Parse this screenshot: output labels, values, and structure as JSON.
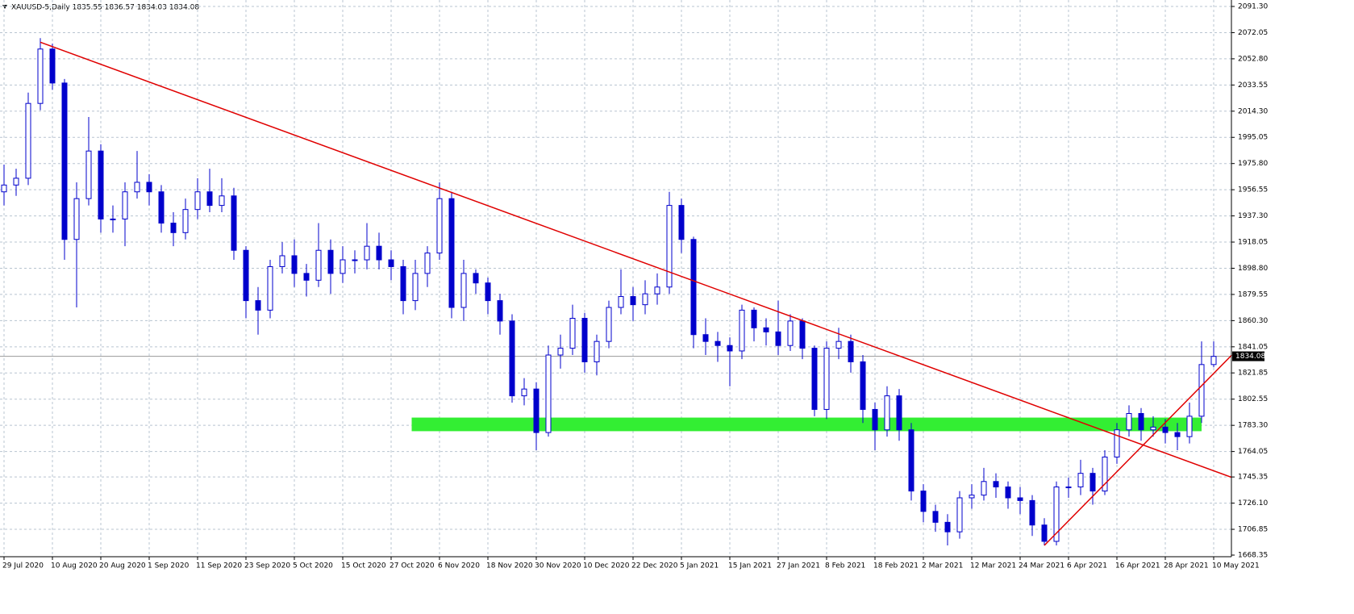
{
  "chart_data": {
    "type": "candlestick",
    "title": "XAUUSD-5,Daily  1835.55 1836.57 1834.03 1834.08",
    "last_price": 1834.08,
    "categories": [
      "29 Jul 2020",
      null,
      null,
      null,
      "10 Aug 2020",
      null,
      null,
      null,
      "20 Aug 2020",
      null,
      null,
      null,
      "1 Sep 2020",
      null,
      null,
      null,
      "11 Sep 2020",
      null,
      null,
      null,
      "23 Sep 2020",
      null,
      null,
      null,
      "5 Oct 2020",
      null,
      null,
      null,
      "15 Oct 2020",
      null,
      null,
      null,
      "27 Oct 2020",
      null,
      null,
      null,
      "6 Nov 2020",
      null,
      null,
      null,
      "18 Nov 2020",
      null,
      null,
      null,
      "30 Nov 2020",
      null,
      null,
      null,
      "10 Dec 2020",
      null,
      null,
      null,
      "22 Dec 2020",
      null,
      null,
      null,
      "5 Jan 2021",
      null,
      null,
      null,
      "15 Jan 2021",
      null,
      null,
      null,
      "27 Jan 2021",
      null,
      null,
      null,
      "8 Feb 2021",
      null,
      null,
      null,
      "18 Feb 2021",
      null,
      null,
      null,
      "2 Mar 2021",
      null,
      null,
      null,
      "12 Mar 2021",
      null,
      null,
      null,
      "24 Mar 2021",
      null,
      null,
      null,
      "6 Apr 2021",
      null,
      null,
      null,
      "16 Apr 2021",
      null,
      null,
      null,
      "28 Apr 2021",
      null,
      null,
      null,
      "10 May 2021"
    ],
    "open": [
      1955,
      1960,
      1965,
      2020,
      2060,
      2035,
      1920,
      1950,
      1985,
      1935,
      1935,
      1955,
      1962,
      1955,
      1932,
      1925,
      1942,
      1955,
      1945,
      1952,
      1912,
      1875,
      1868,
      1900,
      1908,
      1895,
      1890,
      1912,
      1895,
      1905,
      1905,
      1915,
      1905,
      1900,
      1875,
      1895,
      1910,
      1950,
      1870,
      1895,
      1888,
      1875,
      1860,
      1805,
      1810,
      1778,
      1835,
      1840,
      1862,
      1830,
      1845,
      1870,
      1878,
      1872,
      1880,
      1885,
      1945,
      1920,
      1850,
      1845,
      1842,
      1838,
      1868,
      1855,
      1852,
      1842,
      1860,
      1840,
      1795,
      1840,
      1845,
      1830,
      1795,
      1780,
      1805,
      1780,
      1735,
      1720,
      1712,
      1705,
      1730,
      1732,
      1742,
      1738,
      1730,
      1728,
      1710,
      1698,
      1738,
      1738,
      1748,
      1735,
      1760,
      1780,
      1792,
      1780,
      1782,
      1778,
      1775,
      1790,
      1828
    ],
    "high": [
      1975,
      1972,
      2028,
      2068,
      2064,
      2038,
      1962,
      2010,
      1990,
      1945,
      1962,
      1985,
      1968,
      1960,
      1940,
      1950,
      1965,
      1972,
      1965,
      1958,
      1915,
      1885,
      1905,
      1918,
      1920,
      1902,
      1932,
      1920,
      1915,
      1912,
      1932,
      1925,
      1912,
      1905,
      1905,
      1915,
      1962,
      1955,
      1905,
      1898,
      1892,
      1880,
      1865,
      1818,
      1815,
      1842,
      1850,
      1872,
      1866,
      1850,
      1875,
      1898,
      1885,
      1890,
      1895,
      1955,
      1950,
      1922,
      1862,
      1852,
      1848,
      1872,
      1870,
      1862,
      1875,
      1865,
      1862,
      1842,
      1845,
      1855,
      1850,
      1835,
      1800,
      1812,
      1810,
      1785,
      1740,
      1725,
      1718,
      1735,
      1740,
      1752,
      1748,
      1742,
      1738,
      1732,
      1715,
      1742,
      1745,
      1758,
      1752,
      1765,
      1785,
      1798,
      1796,
      1790,
      1788,
      1785,
      1800,
      1845,
      1845
    ],
    "low": [
      1945,
      1952,
      1960,
      2015,
      2030,
      1905,
      1870,
      1945,
      1925,
      1925,
      1915,
      1950,
      1945,
      1925,
      1915,
      1920,
      1935,
      1940,
      1940,
      1905,
      1862,
      1850,
      1862,
      1895,
      1885,
      1878,
      1885,
      1880,
      1888,
      1895,
      1898,
      1898,
      1890,
      1865,
      1868,
      1885,
      1905,
      1862,
      1860,
      1880,
      1865,
      1850,
      1800,
      1798,
      1765,
      1775,
      1825,
      1835,
      1822,
      1820,
      1840,
      1865,
      1860,
      1865,
      1872,
      1880,
      1910,
      1840,
      1835,
      1830,
      1812,
      1832,
      1845,
      1842,
      1835,
      1838,
      1832,
      1790,
      1788,
      1832,
      1822,
      1785,
      1765,
      1775,
      1772,
      1728,
      1712,
      1705,
      1695,
      1700,
      1722,
      1728,
      1730,
      1722,
      1718,
      1702,
      1695,
      1695,
      1730,
      1732,
      1725,
      1732,
      1755,
      1775,
      1772,
      1775,
      1770,
      1765,
      1770,
      1785,
      1826
    ],
    "close": [
      1960,
      1965,
      2020,
      2060,
      2035,
      1920,
      1950,
      1985,
      1935,
      1935,
      1955,
      1962,
      1955,
      1932,
      1925,
      1942,
      1955,
      1945,
      1952,
      1912,
      1875,
      1868,
      1900,
      1908,
      1895,
      1890,
      1912,
      1895,
      1905,
      1905,
      1915,
      1905,
      1900,
      1875,
      1895,
      1910,
      1950,
      1870,
      1895,
      1888,
      1875,
      1860,
      1805,
      1810,
      1778,
      1835,
      1840,
      1862,
      1830,
      1845,
      1870,
      1878,
      1872,
      1880,
      1885,
      1945,
      1920,
      1850,
      1845,
      1842,
      1838,
      1868,
      1855,
      1852,
      1842,
      1860,
      1840,
      1795,
      1840,
      1845,
      1830,
      1795,
      1780,
      1805,
      1780,
      1735,
      1720,
      1712,
      1705,
      1730,
      1732,
      1742,
      1738,
      1730,
      1728,
      1710,
      1698,
      1738,
      1738,
      1748,
      1735,
      1760,
      1780,
      1792,
      1780,
      1782,
      1778,
      1775,
      1790,
      1828,
      1834
    ],
    "color": "#0000cc",
    "trendlines": [
      {
        "x": [
          3,
          101.5
        ],
        "y": [
          2065,
          1745
        ],
        "color": "#e00000"
      },
      {
        "x": [
          86,
          101.5
        ],
        "y": [
          1695,
          1835
        ],
        "color": "#e00000"
      }
    ],
    "zone": {
      "x": [
        33.7,
        99
      ],
      "y": [
        1779,
        1789
      ],
      "color": "#33ee33"
    },
    "ylim": [
      1686.7,
      2091.3
    ],
    "yticks": [
      {
        "value": 2091.3,
        "label": "2091.30"
      },
      2072.05,
      {
        "value": 2052.8,
        "label": "2052.80"
      },
      2033.55,
      {
        "value": 2014.3,
        "label": "2014.30"
      },
      1995.05,
      {
        "value": 1975.8,
        "label": "1975.80"
      },
      1956.55,
      {
        "value": 1937.3,
        "label": "1937.30"
      },
      1918.05,
      {
        "value": 1898.8,
        "label": "1898.80"
      },
      1879.55,
      {
        "value": 1860.3,
        "label": "1860.30"
      },
      1841.05,
      1821.85,
      1802.55,
      {
        "value": 1783.3,
        "label": "1783.30"
      },
      1764.05,
      1745.35,
      {
        "value": 1726.1,
        "label": "1726.10"
      },
      1706.85,
      1668.35
    ],
    "grid": true
  }
}
